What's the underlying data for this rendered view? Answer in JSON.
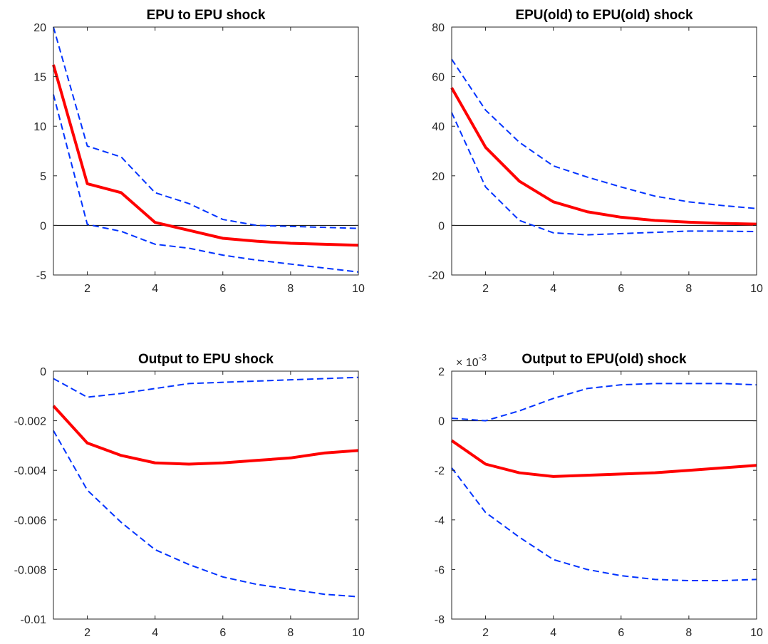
{
  "chart_data": [
    {
      "type": "line",
      "title": "EPU to EPU shock",
      "x": [
        1,
        2,
        3,
        4,
        5,
        6,
        7,
        8,
        9,
        10
      ],
      "xlim": [
        1,
        10
      ],
      "ylim": [
        -5,
        20
      ],
      "xticks": [
        2,
        4,
        6,
        8,
        10
      ],
      "xtick_labels": [
        "2",
        "4",
        "6",
        "8",
        "10"
      ],
      "yticks": [
        -5,
        0,
        5,
        10,
        15,
        20
      ],
      "ytick_labels": [
        "-5",
        "0",
        "5",
        "10",
        "15",
        "20"
      ],
      "exponent_label": "",
      "zero_line": true,
      "series": [
        {
          "role": "response",
          "style": "solid",
          "color": "#ff0000",
          "values": [
            16.2,
            4.2,
            3.3,
            0.3,
            -0.5,
            -1.3,
            -1.6,
            -1.8,
            -1.9,
            -2.0
          ]
        },
        {
          "role": "upper_band",
          "style": "dashed",
          "color": "#0033ff",
          "values": [
            20.0,
            8.0,
            6.9,
            3.3,
            2.2,
            0.6,
            0.0,
            -0.1,
            -0.2,
            -0.3
          ]
        },
        {
          "role": "lower_band",
          "style": "dashed",
          "color": "#0033ff",
          "values": [
            13.2,
            0.1,
            -0.6,
            -1.9,
            -2.3,
            -3.0,
            -3.5,
            -3.9,
            -4.3,
            -4.7
          ]
        }
      ]
    },
    {
      "type": "line",
      "title": "EPU(old) to EPU(old) shock",
      "x": [
        1,
        2,
        3,
        4,
        5,
        6,
        7,
        8,
        9,
        10
      ],
      "xlim": [
        1,
        10
      ],
      "ylim": [
        -20,
        80
      ],
      "xticks": [
        2,
        4,
        6,
        8,
        10
      ],
      "xtick_labels": [
        "2",
        "4",
        "6",
        "8",
        "10"
      ],
      "yticks": [
        -20,
        0,
        20,
        40,
        60,
        80
      ],
      "ytick_labels": [
        "-20",
        "0",
        "20",
        "40",
        "60",
        "80"
      ],
      "exponent_label": "",
      "zero_line": true,
      "series": [
        {
          "role": "response",
          "style": "solid",
          "color": "#ff0000",
          "values": [
            55.5,
            31.5,
            17.8,
            9.5,
            5.5,
            3.3,
            2.0,
            1.3,
            0.8,
            0.5
          ]
        },
        {
          "role": "upper_band",
          "style": "dashed",
          "color": "#0033ff",
          "values": [
            67.0,
            46.5,
            33.5,
            24.0,
            19.5,
            15.5,
            11.8,
            9.5,
            8.0,
            6.8
          ]
        },
        {
          "role": "lower_band",
          "style": "dashed",
          "color": "#0033ff",
          "values": [
            45.5,
            15.5,
            2.0,
            -3.0,
            -3.8,
            -3.3,
            -2.8,
            -2.3,
            -2.3,
            -2.5
          ]
        }
      ]
    },
    {
      "type": "line",
      "title": "Output to EPU shock",
      "x": [
        1,
        2,
        3,
        4,
        5,
        6,
        7,
        8,
        9,
        10
      ],
      "xlim": [
        1,
        10
      ],
      "ylim": [
        -0.01,
        0
      ],
      "xticks": [
        2,
        4,
        6,
        8,
        10
      ],
      "xtick_labels": [
        "2",
        "4",
        "6",
        "8",
        "10"
      ],
      "yticks": [
        -0.01,
        -0.008,
        -0.006,
        -0.004,
        -0.002,
        0
      ],
      "ytick_labels": [
        "-0.01",
        "-0.008",
        "-0.006",
        "-0.004",
        "-0.002",
        "0"
      ],
      "exponent_label": "",
      "zero_line": false,
      "series": [
        {
          "role": "response",
          "style": "solid",
          "color": "#ff0000",
          "values": [
            -0.0014,
            -0.0029,
            -0.0034,
            -0.0037,
            -0.00375,
            -0.0037,
            -0.0036,
            -0.0035,
            -0.0033,
            -0.0032
          ]
        },
        {
          "role": "upper_band",
          "style": "dashed",
          "color": "#0033ff",
          "values": [
            -0.0003,
            -0.00105,
            -0.0009,
            -0.0007,
            -0.0005,
            -0.00045,
            -0.0004,
            -0.00035,
            -0.0003,
            -0.00025
          ]
        },
        {
          "role": "lower_band",
          "style": "dashed",
          "color": "#0033ff",
          "values": [
            -0.0024,
            -0.0048,
            -0.0061,
            -0.0072,
            -0.0078,
            -0.0083,
            -0.0086,
            -0.0088,
            -0.009,
            -0.0091
          ]
        }
      ]
    },
    {
      "type": "line",
      "title": "Output to EPU(old) shock",
      "x": [
        1,
        2,
        3,
        4,
        5,
        6,
        7,
        8,
        9,
        10
      ],
      "xlim": [
        1,
        10
      ],
      "ylim": [
        -8,
        2
      ],
      "xticks": [
        2,
        4,
        6,
        8,
        10
      ],
      "xtick_labels": [
        "2",
        "4",
        "6",
        "8",
        "10"
      ],
      "yticks": [
        -8,
        -6,
        -4,
        -2,
        0,
        2
      ],
      "ytick_labels": [
        "-8",
        "-6",
        "-4",
        "-2",
        "0",
        "2"
      ],
      "exponent_label": "× 10",
      "exponent_value": "-3",
      "zero_line": true,
      "series": [
        {
          "role": "response",
          "style": "solid",
          "color": "#ff0000",
          "values": [
            -0.8,
            -1.75,
            -2.1,
            -2.25,
            -2.2,
            -2.15,
            -2.1,
            -2.0,
            -1.9,
            -1.8
          ]
        },
        {
          "role": "upper_band",
          "style": "dashed",
          "color": "#0033ff",
          "values": [
            0.1,
            0.0,
            0.4,
            0.9,
            1.3,
            1.45,
            1.5,
            1.5,
            1.5,
            1.45
          ]
        },
        {
          "role": "lower_band",
          "style": "dashed",
          "color": "#0033ff",
          "values": [
            -1.9,
            -3.7,
            -4.7,
            -5.6,
            -6.0,
            -6.25,
            -6.4,
            -6.45,
            -6.45,
            -6.4
          ]
        }
      ]
    }
  ]
}
